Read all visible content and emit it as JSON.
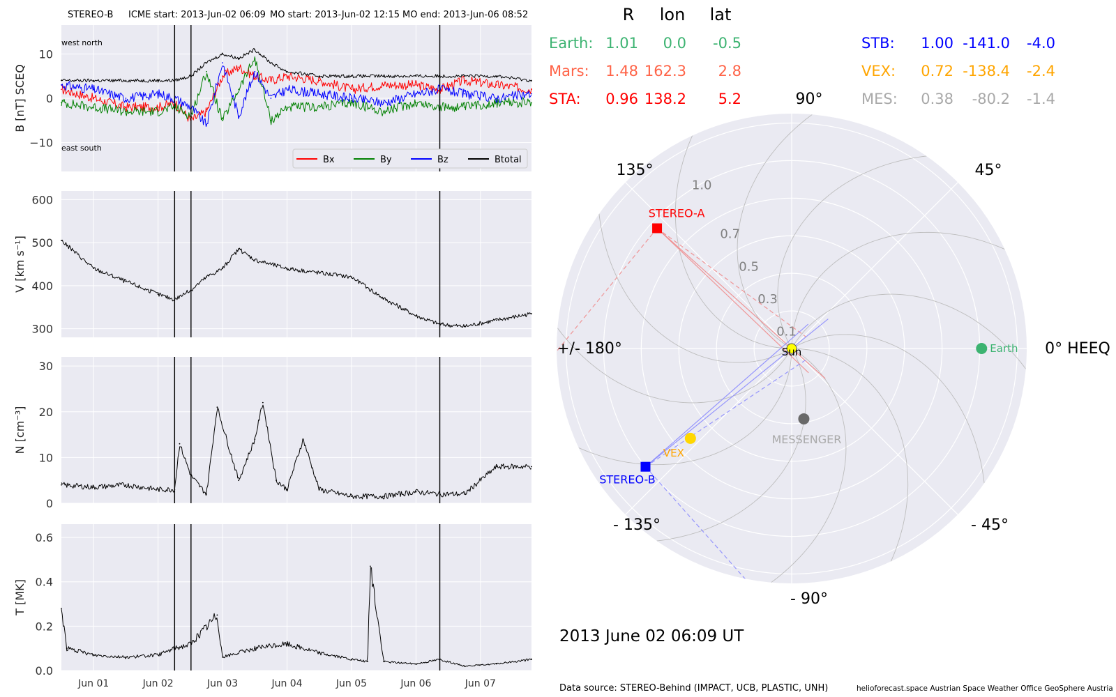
{
  "header": {
    "spacecraft": "STEREO-B",
    "icme_start": "ICME start: 2013-Jun-02 06:09",
    "mo_start": "MO start: 2013-Jun-02 12:15",
    "mo_end": "MO end: 2013-Jun-06 08:52"
  },
  "colors": {
    "panel_bg": "#eaeaf2",
    "grid": "#ffffff",
    "bx": "#ff0000",
    "by": "#008000",
    "bz": "#0000ff",
    "btotal": "#000000",
    "earth": "#3cb371",
    "mars": "#ff6347",
    "sta": "#ff0000",
    "stb": "#0000ff",
    "vex": "#ffa500",
    "mes": "#a9a9a9"
  },
  "time_axis": {
    "start": "2013-05-31 12:00",
    "end": "2013-06-07 19:00",
    "ticks": [
      "Jun 01",
      "Jun 02",
      "Jun 03",
      "Jun 04",
      "Jun 05",
      "Jun 06",
      "Jun 07"
    ],
    "markers": [
      "2013-06-02 06:09",
      "2013-06-02 12:15",
      "2013-06-06 08:52"
    ]
  },
  "b_panel": {
    "ylabel": "B [nT] SCEQ",
    "annot_top": "west    north",
    "annot_bottom": "east    south",
    "legend": [
      "Bx",
      "By",
      "Bz",
      "Btotal"
    ]
  },
  "v_panel": {
    "ylabel": "V [km s⁻¹]"
  },
  "n_panel": {
    "ylabel": "N [cm⁻³]"
  },
  "t_panel": {
    "ylabel": "T [MK]"
  },
  "position_table": {
    "headers": [
      "R",
      "lon",
      "lat"
    ],
    "rows_left": [
      {
        "name": "Earth:",
        "R": "1.01",
        "lon": "0.0",
        "lat": "-0.5",
        "color": "#3cb371"
      },
      {
        "name": "Mars:",
        "R": "1.48",
        "lon": "162.3",
        "lat": "2.8",
        "color": "#ff6347"
      },
      {
        "name": "STA:",
        "R": "0.96",
        "lon": "138.2",
        "lat": "5.2",
        "color": "#ff0000"
      }
    ],
    "rows_right": [
      {
        "name": "STB:",
        "R": "1.00",
        "lon": "-141.0",
        "lat": "-4.0",
        "color": "#0000ff"
      },
      {
        "name": "VEX:",
        "R": "0.72",
        "lon": "-138.4",
        "lat": "-2.4",
        "color": "#ffa500"
      },
      {
        "name": "MES:",
        "R": "0.38",
        "lon": "-80.2",
        "lat": "-1.4",
        "color": "#a9a9a9"
      }
    ]
  },
  "polar_plot": {
    "angle_labels": {
      "0": "0° HEEQ",
      "45": "45°",
      "90": "90°",
      "135": "135°",
      "180": "+/- 180°",
      "m135": "- 135°",
      "m90": "- 90°",
      "m45": "- 45°"
    },
    "radial_labels": [
      "0.1",
      "0.3",
      "0.5",
      "0.7",
      "1.0"
    ],
    "bodies": [
      {
        "name": "Sun",
        "r": 0.0,
        "lon": 0.0,
        "marker": "circle",
        "color": "#ffff00"
      },
      {
        "name": "Earth",
        "r": 1.01,
        "lon": 0.0,
        "marker": "circle",
        "color": "#3cb371"
      },
      {
        "name": "STEREO-A",
        "r": 0.96,
        "lon": 138.2,
        "marker": "square",
        "color": "#ff0000"
      },
      {
        "name": "STEREO-B",
        "r": 1.0,
        "lon": -141.0,
        "marker": "square",
        "color": "#0000ff"
      },
      {
        "name": "VEX",
        "r": 0.72,
        "lon": -138.4,
        "marker": "circle",
        "color": "#ffd700"
      },
      {
        "name": "MESSENGER",
        "r": 0.38,
        "lon": -80.2,
        "marker": "circle",
        "color": "#696969"
      }
    ]
  },
  "timestamp": "2013 June 02  06:09 UT",
  "footer": {
    "source": "Data source: STEREO-Behind (IMPACT, UCB, PLASTIC, UNH)",
    "credits": "helioforecast.space   Austrian Space Weather Office   GeoSphere Austria"
  },
  "chart_data": [
    {
      "type": "line",
      "title": "",
      "ylabel": "B [nT] SCEQ",
      "ylim": [
        -16.5,
        16.5
      ],
      "yticks": [
        -10,
        0,
        10
      ],
      "x_unit": "time (UT), 2013",
      "x": [
        "2013-05-31 12:00",
        "2013-06-01 00:00",
        "2013-06-01 12:00",
        "2013-06-02 00:00",
        "2013-06-02 06:09",
        "2013-06-02 12:15",
        "2013-06-02 18:00",
        "2013-06-03 00:00",
        "2013-06-03 06:00",
        "2013-06-03 12:00",
        "2013-06-03 18:00",
        "2013-06-04 00:00",
        "2013-06-04 12:00",
        "2013-06-05 00:00",
        "2013-06-05 12:00",
        "2013-06-06 00:00",
        "2013-06-06 08:52",
        "2013-06-06 18:00",
        "2013-06-07 06:00",
        "2013-06-07 19:00"
      ],
      "series": [
        {
          "name": "Bx",
          "values": [
            2,
            0,
            -2,
            -2,
            -1,
            -5,
            -3,
            5,
            7,
            5,
            4,
            5,
            4,
            2,
            3,
            3,
            2,
            4,
            3,
            2
          ]
        },
        {
          "name": "By",
          "values": [
            -1,
            -2,
            -3,
            -3,
            -2,
            -4,
            6,
            -5,
            2,
            9,
            -5,
            -2,
            -2,
            -1,
            -3,
            -1,
            -2,
            -2,
            -1,
            -1
          ]
        },
        {
          "name": "Bz",
          "values": [
            3,
            2,
            0,
            1,
            0,
            -2,
            -6,
            8,
            -4,
            6,
            0,
            2,
            1,
            0,
            -1,
            1,
            2,
            1,
            0,
            1
          ]
        },
        {
          "name": "Btotal",
          "values": [
            4,
            4,
            4,
            4,
            4,
            5,
            8,
            10,
            9,
            11,
            8,
            6,
            5,
            5,
            5,
            5,
            5,
            5,
            5,
            4
          ]
        }
      ]
    },
    {
      "type": "line",
      "ylabel": "V [km s⁻¹]",
      "ylim": [
        280,
        620
      ],
      "yticks": [
        300,
        400,
        500,
        600
      ],
      "x": [
        "2013-05-31 12:00",
        "2013-06-01 00:00",
        "2013-06-01 12:00",
        "2013-06-02 00:00",
        "2013-06-02 06:09",
        "2013-06-02 12:15",
        "2013-06-02 18:00",
        "2013-06-03 00:00",
        "2013-06-03 06:00",
        "2013-06-03 12:00",
        "2013-06-04 00:00",
        "2013-06-04 12:00",
        "2013-06-05 00:00",
        "2013-06-05 12:00",
        "2013-06-06 00:00",
        "2013-06-06 08:52",
        "2013-06-06 18:00",
        "2013-06-07 06:00",
        "2013-06-07 19:00"
      ],
      "series": [
        {
          "name": "",
          "values": [
            505,
            440,
            410,
            380,
            368,
            390,
            420,
            440,
            485,
            460,
            440,
            430,
            420,
            370,
            330,
            310,
            305,
            320,
            335
          ]
        }
      ]
    },
    {
      "type": "line",
      "ylabel": "N [cm⁻³]",
      "ylim": [
        0,
        32
      ],
      "yticks": [
        0,
        10,
        20,
        30
      ],
      "x": [
        "2013-05-31 12:00",
        "2013-06-01 00:00",
        "2013-06-01 12:00",
        "2013-06-02 00:00",
        "2013-06-02 06:09",
        "2013-06-02 08:00",
        "2013-06-02 12:15",
        "2013-06-02 18:00",
        "2013-06-02 22:00",
        "2013-06-03 06:00",
        "2013-06-03 12:00",
        "2013-06-03 15:00",
        "2013-06-03 20:00",
        "2013-06-04 00:00",
        "2013-06-04 06:00",
        "2013-06-04 12:00",
        "2013-06-05 00:00",
        "2013-06-05 12:00",
        "2013-06-06 00:00",
        "2013-06-06 08:52",
        "2013-06-06 18:00",
        "2013-06-07 06:00",
        "2013-06-07 19:00"
      ],
      "series": [
        {
          "name": "",
          "values": [
            4,
            3.5,
            4,
            3,
            3,
            13,
            6,
            2,
            21,
            5,
            14,
            22,
            5,
            3,
            14,
            3,
            1.5,
            1.5,
            2.5,
            2,
            2,
            8,
            8
          ]
        }
      ]
    },
    {
      "type": "line",
      "ylabel": "T [MK]",
      "ylim": [
        0,
        0.66
      ],
      "yticks": [
        0.0,
        0.2,
        0.4,
        0.6
      ],
      "x": [
        "2013-05-31 12:00",
        "2013-05-31 14:00",
        "2013-06-01 00:00",
        "2013-06-01 12:00",
        "2013-06-02 00:00",
        "2013-06-02 06:09",
        "2013-06-02 12:15",
        "2013-06-02 22:00",
        "2013-06-03 00:00",
        "2013-06-03 12:00",
        "2013-06-04 00:00",
        "2013-06-04 12:00",
        "2013-06-05 00:00",
        "2013-06-05 06:00",
        "2013-06-05 07:00",
        "2013-06-05 12:00",
        "2013-06-06 00:00",
        "2013-06-06 08:52",
        "2013-06-06 18:00",
        "2013-06-07 06:00",
        "2013-06-07 19:00"
      ],
      "series": [
        {
          "name": "",
          "values": [
            0.28,
            0.1,
            0.07,
            0.06,
            0.07,
            0.1,
            0.12,
            0.25,
            0.06,
            0.1,
            0.12,
            0.08,
            0.05,
            0.04,
            0.47,
            0.04,
            0.03,
            0.05,
            0.02,
            0.03,
            0.05
          ]
        }
      ]
    }
  ]
}
